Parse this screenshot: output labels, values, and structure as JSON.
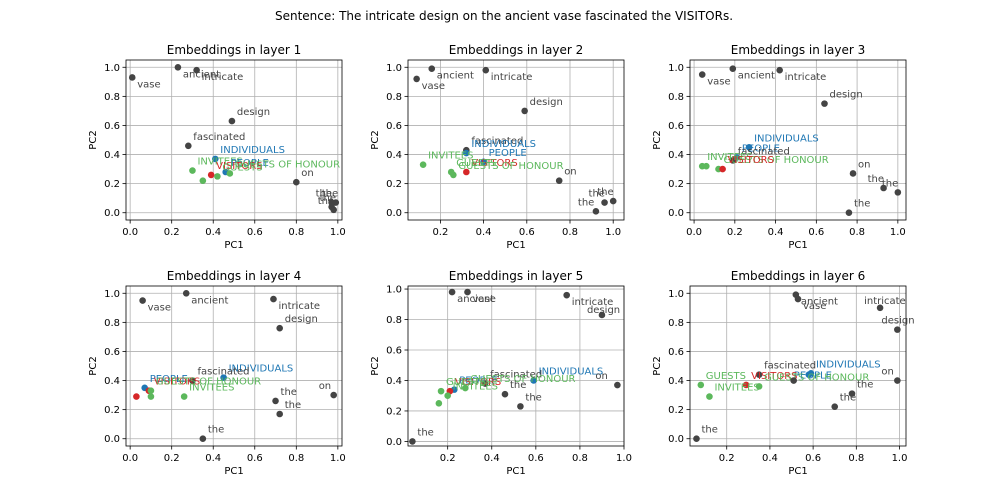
{
  "figure": {
    "suptitle": "Sentence: The intricate design on the ancient vase fascinated the VISITORs.",
    "colors": {
      "word": "#444444",
      "target": "#d62728",
      "related": "#5cb85c",
      "people": "#1f77b4"
    }
  },
  "chart_data": [
    {
      "type": "scatter",
      "title": "Embeddings in layer 1",
      "xlabel": "PC1",
      "ylabel": "PC2",
      "xlim": [
        -0.02,
        1.02
      ],
      "ylim": [
        -0.05,
        1.05
      ],
      "xticks": [
        "0.0",
        "0.2",
        "0.4",
        "0.6",
        "0.8",
        "1.0"
      ],
      "yticks": [
        "0.0",
        "0.2",
        "0.4",
        "0.6",
        "0.8",
        "1.0"
      ],
      "grid": true,
      "points": [
        {
          "label": "vase",
          "x": 0.01,
          "y": 0.93,
          "group": "word",
          "dx": 5,
          "dy": 10
        },
        {
          "label": "ancient",
          "x": 0.23,
          "y": 1.0,
          "group": "word",
          "dx": 5,
          "dy": 10
        },
        {
          "label": "intricate",
          "x": 0.32,
          "y": 0.98,
          "group": "word",
          "dx": 5,
          "dy": 10
        },
        {
          "label": "design",
          "x": 0.49,
          "y": 0.63,
          "group": "word",
          "dx": 5,
          "dy": -6
        },
        {
          "label": "fascinated",
          "x": 0.28,
          "y": 0.46,
          "group": "word",
          "dx": 5,
          "dy": -6
        },
        {
          "label": "INDIVIDUALS",
          "x": 0.41,
          "y": 0.37,
          "group": "people",
          "dx": 5,
          "dy": -6
        },
        {
          "label": "INVITEES",
          "x": 0.3,
          "y": 0.29,
          "group": "related",
          "dx": 5,
          "dy": -6
        },
        {
          "label": "PEOPLE",
          "x": 0.46,
          "y": 0.28,
          "group": "people",
          "dx": 5,
          "dy": -6
        },
        {
          "label": "VISITORS",
          "x": 0.39,
          "y": 0.26,
          "group": "target",
          "dx": 5,
          "dy": -6
        },
        {
          "label": "GUESTS OF HONOUR",
          "x": 0.48,
          "y": 0.27,
          "group": "related",
          "dx": 5,
          "dy": -6
        },
        {
          "label": "GUESTS",
          "x": 0.42,
          "y": 0.25,
          "group": "related",
          "dx": 5,
          "dy": -6
        },
        {
          "label": "",
          "x": 0.35,
          "y": 0.22,
          "group": "related",
          "dx": 5,
          "dy": -6
        },
        {
          "label": "on",
          "x": 0.8,
          "y": 0.21,
          "group": "word",
          "dx": 5,
          "dy": -6
        },
        {
          "label": "the",
          "x": 0.99,
          "y": 0.07,
          "group": "word",
          "dx": -14,
          "dy": -6
        },
        {
          "label": "the",
          "x": 0.97,
          "y": 0.04,
          "group": "word",
          "dx": -12,
          "dy": -6
        },
        {
          "label": "the",
          "x": 0.98,
          "y": 0.02,
          "group": "word",
          "dx": -16,
          "dy": -6
        },
        {
          "label": "the",
          "x": 0.97,
          "y": 0.07,
          "group": "word",
          "dx": -16,
          "dy": -6
        }
      ]
    },
    {
      "type": "scatter",
      "title": "Embeddings in layer 2",
      "xlabel": "PC1",
      "ylabel": "PC2",
      "xlim": [
        0.05,
        1.05
      ],
      "ylim": [
        -0.05,
        1.05
      ],
      "xticks": [
        "0.2",
        "0.4",
        "0.6",
        "0.8",
        "1.0"
      ],
      "yticks": [
        "0.0",
        "0.2",
        "0.4",
        "0.6",
        "0.8",
        "1.0"
      ],
      "grid": true,
      "points": [
        {
          "label": "vase",
          "x": 0.09,
          "y": 0.92,
          "group": "word",
          "dx": 5,
          "dy": 10
        },
        {
          "label": "ancient",
          "x": 0.16,
          "y": 0.99,
          "group": "word",
          "dx": 5,
          "dy": 10
        },
        {
          "label": "intricate",
          "x": 0.41,
          "y": 0.98,
          "group": "word",
          "dx": 5,
          "dy": 10
        },
        {
          "label": "design",
          "x": 0.59,
          "y": 0.7,
          "group": "word",
          "dx": 5,
          "dy": -6
        },
        {
          "label": "fascinated",
          "x": 0.32,
          "y": 0.43,
          "group": "word",
          "dx": 5,
          "dy": -6
        },
        {
          "label": "INDIVIDUALS",
          "x": 0.32,
          "y": 0.41,
          "group": "people",
          "dx": 5,
          "dy": -6
        },
        {
          "label": "PEOPLE",
          "x": 0.4,
          "y": 0.35,
          "group": "people",
          "dx": 5,
          "dy": -6
        },
        {
          "label": "INVITEES",
          "x": 0.12,
          "y": 0.33,
          "group": "related",
          "dx": 5,
          "dy": -6
        },
        {
          "label": "VISITORS",
          "x": 0.32,
          "y": 0.28,
          "group": "target",
          "dx": 5,
          "dy": -6
        },
        {
          "label": "GUESTS",
          "x": 0.25,
          "y": 0.28,
          "group": "related",
          "dx": 5,
          "dy": -6
        },
        {
          "label": "GUESTS OF HONOUR",
          "x": 0.26,
          "y": 0.26,
          "group": "related",
          "dx": 5,
          "dy": -6
        },
        {
          "label": "on",
          "x": 0.75,
          "y": 0.22,
          "group": "word",
          "dx": 5,
          "dy": -6
        },
        {
          "label": "the",
          "x": 0.92,
          "y": 0.01,
          "group": "word",
          "dx": -18,
          "dy": -6
        },
        {
          "label": "the",
          "x": 0.96,
          "y": 0.07,
          "group": "word",
          "dx": -16,
          "dy": -6
        },
        {
          "label": "the",
          "x": 1.0,
          "y": 0.08,
          "group": "word",
          "dx": -16,
          "dy": -6
        }
      ]
    },
    {
      "type": "scatter",
      "title": "Embeddings in layer 3",
      "xlabel": "PC1",
      "ylabel": "PC2",
      "xlim": [
        -0.02,
        1.04
      ],
      "ylim": [
        -0.05,
        1.05
      ],
      "xticks": [
        "0.0",
        "0.2",
        "0.4",
        "0.6",
        "0.8",
        "1.0"
      ],
      "yticks": [
        "0.0",
        "0.2",
        "0.4",
        "0.6",
        "0.8",
        "1.0"
      ],
      "grid": true,
      "points": [
        {
          "label": "vase",
          "x": 0.04,
          "y": 0.95,
          "group": "word",
          "dx": 5,
          "dy": 10
        },
        {
          "label": "ancient",
          "x": 0.19,
          "y": 0.99,
          "group": "word",
          "dx": 5,
          "dy": 10
        },
        {
          "label": "intricate",
          "x": 0.42,
          "y": 0.98,
          "group": "word",
          "dx": 5,
          "dy": 10
        },
        {
          "label": "design",
          "x": 0.64,
          "y": 0.75,
          "group": "word",
          "dx": 5,
          "dy": -6
        },
        {
          "label": "INDIVIDUALS",
          "x": 0.27,
          "y": 0.45,
          "group": "people",
          "dx": 5,
          "dy": -6
        },
        {
          "label": "PEOPLE",
          "x": 0.21,
          "y": 0.38,
          "group": "people",
          "dx": 5,
          "dy": -6
        },
        {
          "label": "fascinated",
          "x": 0.19,
          "y": 0.36,
          "group": "word",
          "dx": 5,
          "dy": -6
        },
        {
          "label": "INVITEES",
          "x": 0.04,
          "y": 0.32,
          "group": "related",
          "dx": 5,
          "dy": -6
        },
        {
          "label": "",
          "x": 0.06,
          "y": 0.32,
          "group": "related",
          "dx": 5,
          "dy": -6
        },
        {
          "label": "GUESTS OF HONOUR",
          "x": 0.12,
          "y": 0.3,
          "group": "related",
          "dx": 5,
          "dy": -6
        },
        {
          "label": "VISITORS",
          "x": 0.14,
          "y": 0.3,
          "group": "target",
          "dx": 5,
          "dy": -6
        },
        {
          "label": "on",
          "x": 0.78,
          "y": 0.27,
          "group": "word",
          "dx": 5,
          "dy": -6
        },
        {
          "label": "the",
          "x": 0.93,
          "y": 0.17,
          "group": "word",
          "dx": -16,
          "dy": -6
        },
        {
          "label": "the",
          "x": 1.0,
          "y": 0.14,
          "group": "word",
          "dx": -16,
          "dy": -6
        },
        {
          "label": "the",
          "x": 0.76,
          "y": 0.0,
          "group": "word",
          "dx": 5,
          "dy": -6
        }
      ]
    },
    {
      "type": "scatter",
      "title": "Embeddings in layer 4",
      "xlabel": "PC1",
      "ylabel": "PC2",
      "xlim": [
        -0.02,
        1.02
      ],
      "ylim": [
        -0.05,
        1.05
      ],
      "xticks": [
        "0.0",
        "0.2",
        "0.4",
        "0.6",
        "0.8",
        "1.0"
      ],
      "yticks": [
        "0.0",
        "0.2",
        "0.4",
        "0.6",
        "0.8",
        "1.0"
      ],
      "grid": true,
      "points": [
        {
          "label": "vase",
          "x": 0.06,
          "y": 0.95,
          "group": "word",
          "dx": 5,
          "dy": 10
        },
        {
          "label": "ancient",
          "x": 0.27,
          "y": 1.0,
          "group": "word",
          "dx": 5,
          "dy": 10
        },
        {
          "label": "intricate",
          "x": 0.69,
          "y": 0.96,
          "group": "word",
          "dx": 5,
          "dy": 10
        },
        {
          "label": "design",
          "x": 0.72,
          "y": 0.76,
          "group": "word",
          "dx": 5,
          "dy": -6
        },
        {
          "label": "INDIVIDUALS",
          "x": 0.45,
          "y": 0.42,
          "group": "people",
          "dx": 5,
          "dy": -6
        },
        {
          "label": "fascinated",
          "x": 0.3,
          "y": 0.4,
          "group": "word",
          "dx": 5,
          "dy": -6
        },
        {
          "label": "PEOPLE",
          "x": 0.07,
          "y": 0.35,
          "group": "people",
          "dx": 5,
          "dy": -6
        },
        {
          "label": "VISITORS",
          "x": 0.09,
          "y": 0.33,
          "group": "target",
          "dx": 5,
          "dy": -6
        },
        {
          "label": "GUESTS OF HONOUR",
          "x": 0.1,
          "y": 0.33,
          "group": "related",
          "dx": 5,
          "dy": -6
        },
        {
          "label": "INVITEES",
          "x": 0.26,
          "y": 0.29,
          "group": "related",
          "dx": 5,
          "dy": -6
        },
        {
          "label": "",
          "x": 0.1,
          "y": 0.29,
          "group": "related",
          "dx": 5,
          "dy": -6
        },
        {
          "label": "",
          "x": 0.03,
          "y": 0.29,
          "group": "target",
          "dx": 5,
          "dy": -6
        },
        {
          "label": "on",
          "x": 0.98,
          "y": 0.3,
          "group": "word",
          "dx": -15,
          "dy": -6
        },
        {
          "label": "the",
          "x": 0.7,
          "y": 0.26,
          "group": "word",
          "dx": 5,
          "dy": -6
        },
        {
          "label": "the",
          "x": 0.72,
          "y": 0.17,
          "group": "word",
          "dx": 5,
          "dy": -6
        },
        {
          "label": "the",
          "x": 0.35,
          "y": 0.0,
          "group": "word",
          "dx": 5,
          "dy": -6
        }
      ]
    },
    {
      "type": "scatter",
      "title": "Embeddings in layer 5",
      "xlabel": "PC1",
      "ylabel": "PC2",
      "xlim": [
        0.02,
        1.0
      ],
      "ylim": [
        -0.03,
        1.02
      ],
      "xticks": [
        "0.2",
        "0.4",
        "0.6",
        "0.8",
        "1.0"
      ],
      "yticks": [
        "0.0",
        "0.2",
        "0.4",
        "0.6",
        "0.8",
        "1.0"
      ],
      "grid": true,
      "points": [
        {
          "label": "ancient",
          "x": 0.22,
          "y": 0.98,
          "group": "word",
          "dx": 5,
          "dy": 10
        },
        {
          "label": "vase",
          "x": 0.29,
          "y": 0.98,
          "group": "word",
          "dx": 5,
          "dy": 10
        },
        {
          "label": "intricate",
          "x": 0.74,
          "y": 0.96,
          "group": "word",
          "dx": 5,
          "dy": 10
        },
        {
          "label": "design",
          "x": 0.9,
          "y": 0.83,
          "group": "word",
          "dx": -15,
          "dy": -2
        },
        {
          "label": "INDIVIDUALS",
          "x": 0.59,
          "y": 0.4,
          "group": "people",
          "dx": 5,
          "dy": -6
        },
        {
          "label": "fascinated",
          "x": 0.37,
          "y": 0.38,
          "group": "word",
          "dx": 5,
          "dy": -6
        },
        {
          "label": "on",
          "x": 0.97,
          "y": 0.37,
          "group": "word",
          "dx": -22,
          "dy": -6
        },
        {
          "label": "PEOPLE",
          "x": 0.23,
          "y": 0.34,
          "group": "people",
          "dx": 5,
          "dy": -6
        },
        {
          "label": "VISITORS",
          "x": 0.21,
          "y": 0.33,
          "group": "target",
          "dx": 5,
          "dy": -6
        },
        {
          "label": "GUESTS",
          "x": 0.17,
          "y": 0.33,
          "group": "related",
          "dx": 5,
          "dy": -6
        },
        {
          "label": "GUESTS OF HONOUR",
          "x": 0.28,
          "y": 0.35,
          "group": "related",
          "dx": 5,
          "dy": -6
        },
        {
          "label": "INVITEES",
          "x": 0.2,
          "y": 0.3,
          "group": "related",
          "dx": 5,
          "dy": -6
        },
        {
          "label": "",
          "x": 0.16,
          "y": 0.25,
          "group": "related",
          "dx": 5,
          "dy": -6
        },
        {
          "label": "the",
          "x": 0.46,
          "y": 0.31,
          "group": "word",
          "dx": 5,
          "dy": -6
        },
        {
          "label": "the",
          "x": 0.53,
          "y": 0.23,
          "group": "word",
          "dx": 5,
          "dy": -6
        },
        {
          "label": "the",
          "x": 0.04,
          "y": 0.0,
          "group": "word",
          "dx": 5,
          "dy": -6
        }
      ]
    },
    {
      "type": "scatter",
      "title": "Embeddings in layer 6",
      "xlabel": "PC1",
      "ylabel": "PC2",
      "xlim": [
        0.03,
        1.03
      ],
      "ylim": [
        -0.05,
        1.05
      ],
      "xticks": [
        "0.2",
        "0.4",
        "0.6",
        "0.8",
        "1.0"
      ],
      "yticks": [
        "0.0",
        "0.2",
        "0.4",
        "0.6",
        "0.8",
        "1.0"
      ],
      "grid": true,
      "points": [
        {
          "label": "ancient",
          "x": 0.52,
          "y": 0.99,
          "group": "word",
          "dx": 5,
          "dy": 10
        },
        {
          "label": "vase",
          "x": 0.53,
          "y": 0.96,
          "group": "word",
          "dx": 5,
          "dy": 10
        },
        {
          "label": "intricate",
          "x": 0.91,
          "y": 0.9,
          "group": "word",
          "dx": -16,
          "dy": -4
        },
        {
          "label": "design",
          "x": 0.99,
          "y": 0.75,
          "group": "word",
          "dx": -16,
          "dy": -6
        },
        {
          "label": "INDIVIDUALS",
          "x": 0.59,
          "y": 0.45,
          "group": "people",
          "dx": 5,
          "dy": -6
        },
        {
          "label": "fascinated",
          "x": 0.35,
          "y": 0.44,
          "group": "word",
          "dx": 5,
          "dy": -6
        },
        {
          "label": "PEOPLE",
          "x": 0.58,
          "y": 0.44,
          "group": "people",
          "dx": -15,
          "dy": 4
        },
        {
          "label": "VISITORS",
          "x": 0.29,
          "y": 0.37,
          "group": "target",
          "dx": 5,
          "dy": -6
        },
        {
          "label": "GUESTS OF HONOUR",
          "x": 0.35,
          "y": 0.36,
          "group": "related",
          "dx": 5,
          "dy": -6
        },
        {
          "label": "GUESTS",
          "x": 0.08,
          "y": 0.37,
          "group": "related",
          "dx": 5,
          "dy": -6
        },
        {
          "label": "INVITEES",
          "x": 0.12,
          "y": 0.29,
          "group": "related",
          "dx": 5,
          "dy": -6
        },
        {
          "label": "",
          "x": 0.51,
          "y": 0.4,
          "group": "word",
          "dx": 5,
          "dy": -6
        },
        {
          "label": "on",
          "x": 0.99,
          "y": 0.4,
          "group": "word",
          "dx": -16,
          "dy": -6
        },
        {
          "label": "the",
          "x": 0.78,
          "y": 0.31,
          "group": "word",
          "dx": 5,
          "dy": -6
        },
        {
          "label": "the",
          "x": 0.7,
          "y": 0.22,
          "group": "word",
          "dx": 5,
          "dy": -6
        },
        {
          "label": "the",
          "x": 0.06,
          "y": 0.0,
          "group": "word",
          "dx": 5,
          "dy": -6
        }
      ]
    }
  ]
}
